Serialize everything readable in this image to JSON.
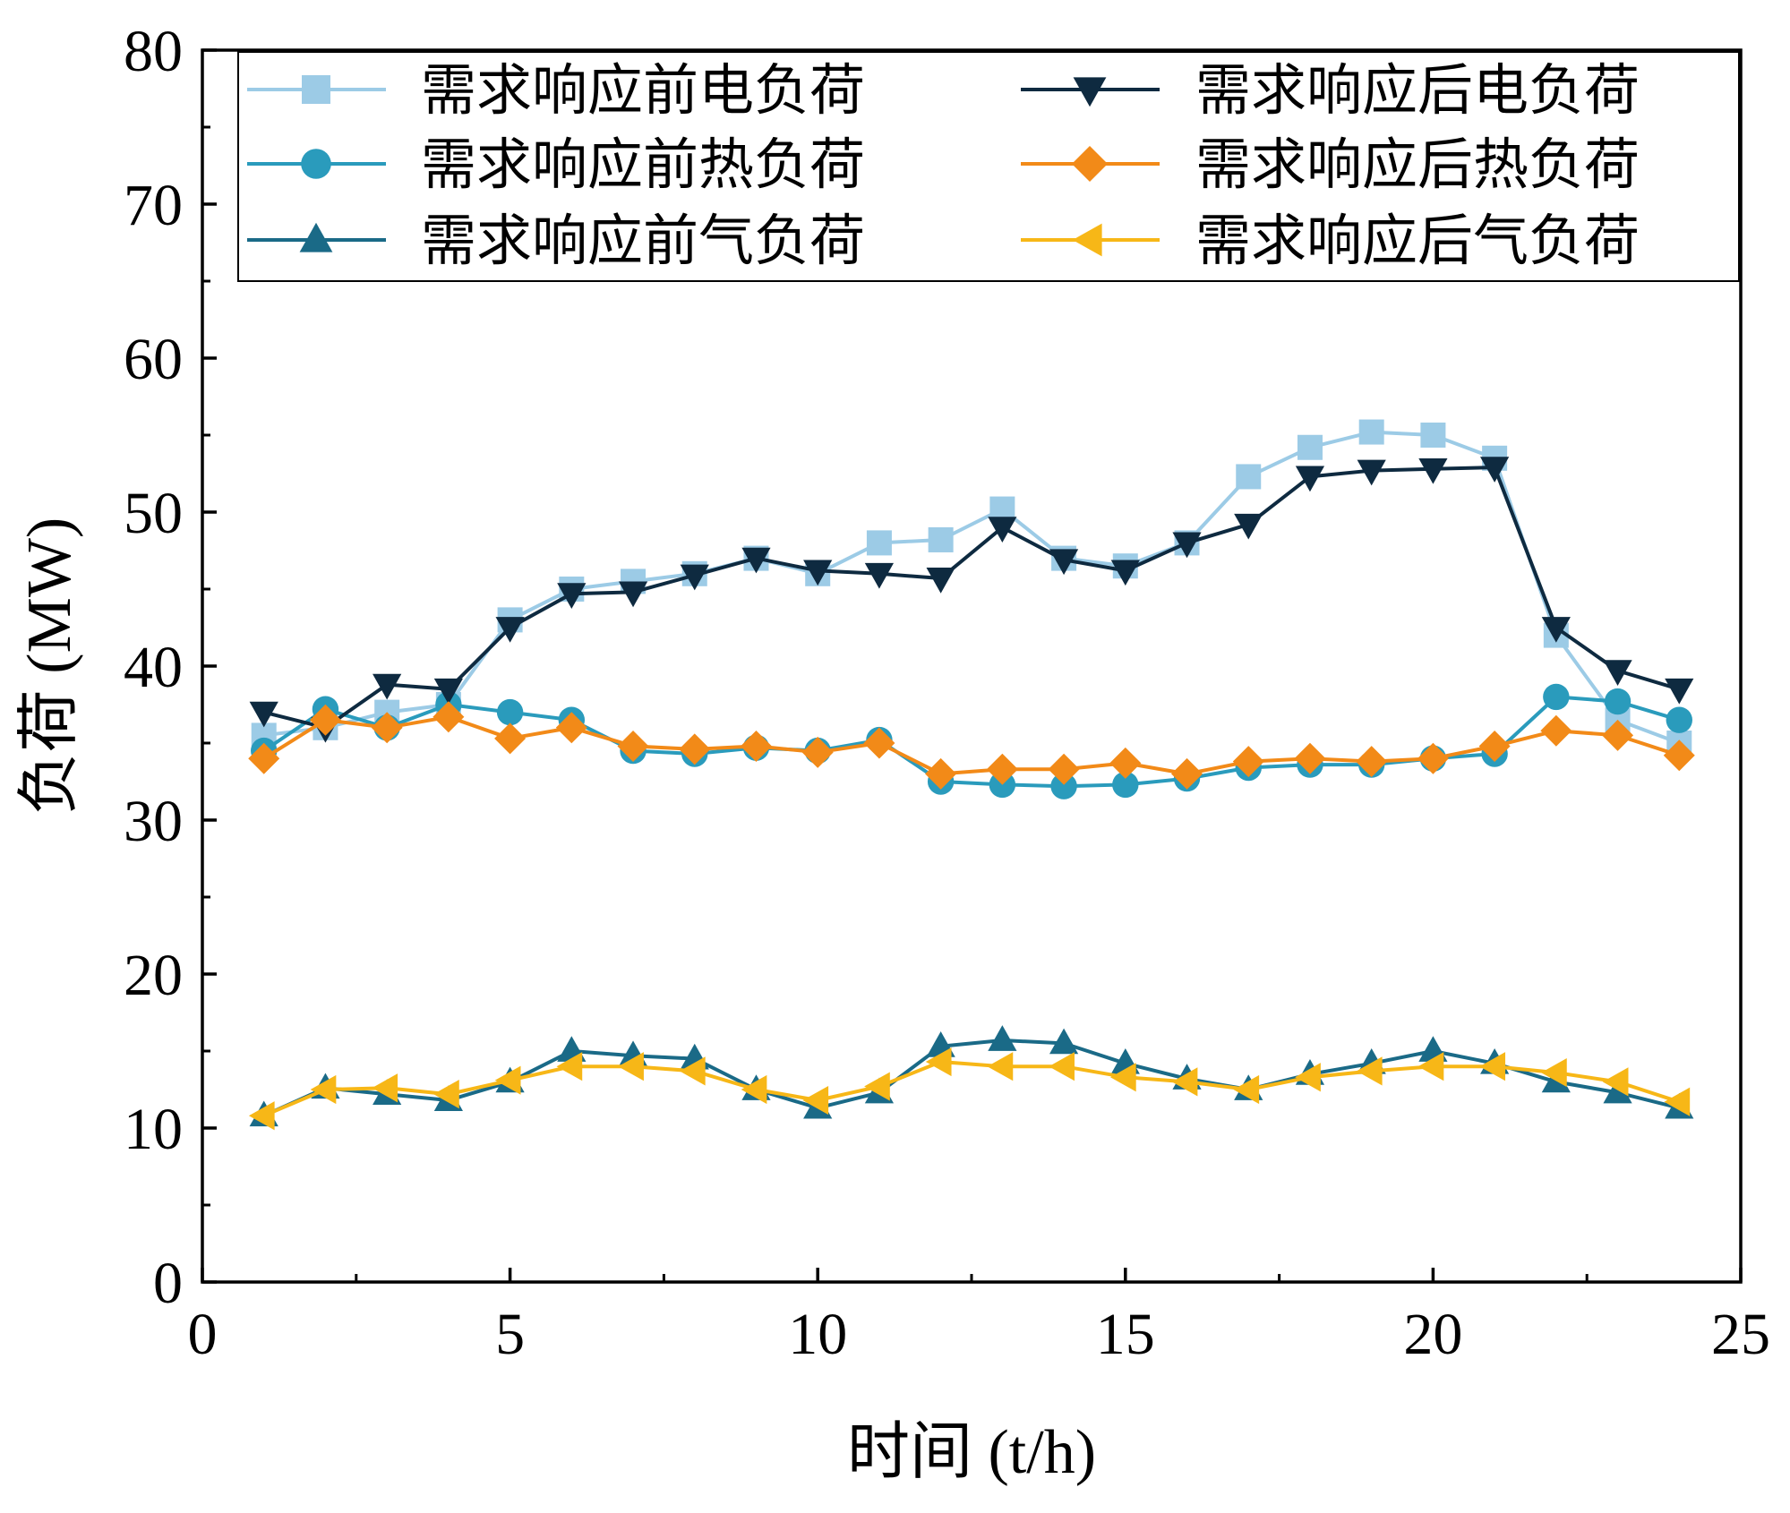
{
  "chart_data": {
    "type": "line",
    "title": "",
    "xlabel": "时间 (t/h)",
    "ylabel": "负荷 (MW)",
    "xlim": [
      0,
      25
    ],
    "ylim": [
      0,
      80
    ],
    "xticks": [
      0,
      5,
      10,
      15,
      20,
      25
    ],
    "yticks": [
      0,
      10,
      20,
      30,
      40,
      50,
      60,
      70,
      80
    ],
    "x": [
      1,
      2,
      3,
      4,
      5,
      6,
      7,
      8,
      9,
      10,
      11,
      12,
      13,
      14,
      15,
      16,
      17,
      18,
      19,
      20,
      21,
      22,
      23,
      24
    ],
    "legend_position": "top",
    "series": [
      {
        "name": "需求响应前电负荷",
        "color": "#9ccbe6",
        "marker": "square",
        "values": [
          35.5,
          36.0,
          37.0,
          37.5,
          43.0,
          45.0,
          45.5,
          46.0,
          47.0,
          46.0,
          48.0,
          48.2,
          50.2,
          47.0,
          46.5,
          48.0,
          52.3,
          54.2,
          55.2,
          55.0,
          53.5,
          42.0,
          36.5,
          35.0
        ]
      },
      {
        "name": "需求响应前热负荷",
        "color": "#2a9bbc",
        "marker": "circle",
        "values": [
          34.5,
          37.2,
          36.0,
          37.5,
          37.0,
          36.5,
          34.5,
          34.3,
          34.7,
          34.5,
          35.2,
          32.5,
          32.3,
          32.2,
          32.3,
          32.7,
          33.4,
          33.6,
          33.6,
          34.0,
          34.3,
          38.0,
          37.7,
          36.5
        ]
      },
      {
        "name": "需求响应前气负荷",
        "color": "#1a6a87",
        "marker": "triangle-up",
        "values": [
          10.8,
          12.6,
          12.2,
          11.8,
          13.0,
          15.0,
          14.7,
          14.5,
          12.5,
          11.3,
          12.3,
          15.3,
          15.7,
          15.5,
          14.2,
          13.2,
          12.5,
          13.5,
          14.2,
          15.0,
          14.2,
          13.0,
          12.3,
          11.3
        ]
      },
      {
        "name": "需求响应后电负荷",
        "color": "#0e2a40",
        "marker": "triangle-down",
        "values": [
          37.0,
          36.0,
          38.8,
          38.5,
          42.5,
          44.7,
          44.8,
          45.9,
          47.0,
          46.2,
          46.0,
          45.7,
          49.0,
          46.9,
          46.2,
          48.0,
          49.2,
          52.3,
          52.7,
          52.8,
          52.9,
          42.5,
          39.7,
          38.5
        ]
      },
      {
        "name": "需求响应后热负荷",
        "color": "#f28a18",
        "marker": "diamond",
        "values": [
          34.0,
          36.5,
          36.0,
          36.7,
          35.3,
          36.0,
          34.8,
          34.6,
          34.8,
          34.4,
          35.0,
          33.0,
          33.3,
          33.3,
          33.7,
          33.0,
          33.8,
          34.0,
          33.8,
          34.0,
          34.8,
          35.8,
          35.5,
          34.2
        ]
      },
      {
        "name": "需求响应后气负荷",
        "color": "#f7b717",
        "marker": "triangle-left",
        "values": [
          10.8,
          12.5,
          12.6,
          12.2,
          13.1,
          14.0,
          14.0,
          13.7,
          12.5,
          11.8,
          12.7,
          14.3,
          14.0,
          14.0,
          13.3,
          13.0,
          12.5,
          13.3,
          13.7,
          14.0,
          14.0,
          13.6,
          13.0,
          11.7
        ]
      }
    ]
  }
}
